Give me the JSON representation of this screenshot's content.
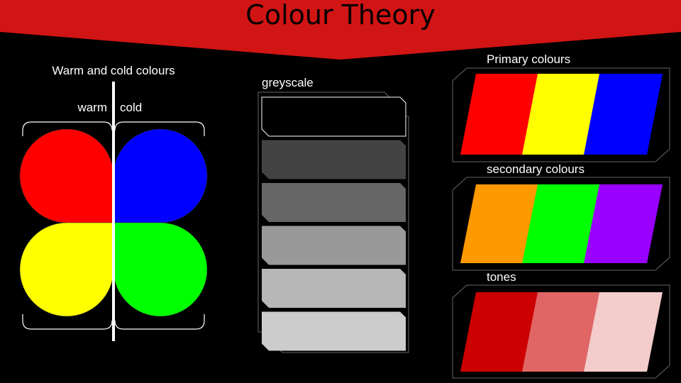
{
  "title": "Colour Theory",
  "colors": {
    "banner": "#d11414",
    "background": "#000000",
    "warm_top": "#ff0000",
    "warm_bottom": "#ffff00",
    "cold_top": "#0000ff",
    "cold_bottom": "#00ff00"
  },
  "warm_cold": {
    "heading": "Warm and cold colours",
    "warm_label": "warm",
    "cold_label": "cold"
  },
  "greyscale": {
    "label": "greyscale",
    "swatches": [
      "#000000",
      "#434343",
      "#666666",
      "#999999",
      "#b7b7b7",
      "#cccccc"
    ]
  },
  "primary": {
    "label": "Primary colours",
    "swatches": [
      "#ff0000",
      "#ffff00",
      "#0000ff"
    ]
  },
  "secondary": {
    "label": "secondary colours",
    "swatches": [
      "#ff9900",
      "#00ff00",
      "#9900ff"
    ]
  },
  "tones": {
    "label": "tones",
    "swatches": [
      "#cc0000",
      "#e06666",
      "#f4cccc"
    ]
  }
}
